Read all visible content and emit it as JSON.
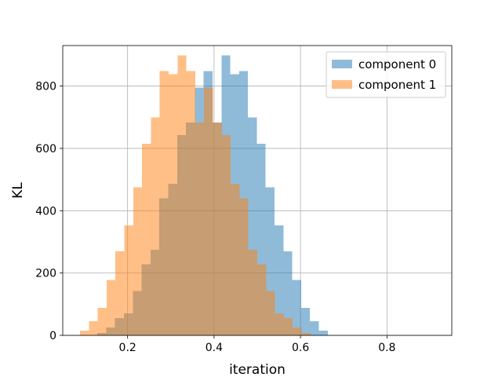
{
  "chart_data": {
    "type": "bar",
    "title": "",
    "xlabel": "iteration",
    "ylabel": "KL",
    "xlim": [
      0.05,
      0.95
    ],
    "ylim": [
      0,
      930
    ],
    "xticks": [
      0.2,
      0.4,
      0.6,
      0.8
    ],
    "yticks": [
      0,
      200,
      400,
      600,
      800
    ],
    "grid": true,
    "legend_position": "top-right",
    "bin_width": 0.0205,
    "series": [
      {
        "name": "component 0",
        "color": "#1f77b4",
        "alpha": 0.5,
        "bins_start": 0.13,
        "values": [
          8,
          25,
          55,
          70,
          143,
          228,
          275,
          440,
          487,
          643,
          683,
          795,
          848,
          683,
          898,
          838,
          848,
          700,
          615,
          475,
          353,
          270,
          178,
          88,
          45,
          15
        ]
      },
      {
        "name": "component 1",
        "color": "#ff7f0e",
        "alpha": 0.5,
        "bins_start": 0.09,
        "values": [
          15,
          45,
          88,
          178,
          270,
          353,
          475,
          615,
          700,
          848,
          838,
          898,
          848,
          683,
          795,
          683,
          643,
          487,
          440,
          275,
          228,
          143,
          70,
          55,
          25,
          8
        ]
      }
    ]
  }
}
